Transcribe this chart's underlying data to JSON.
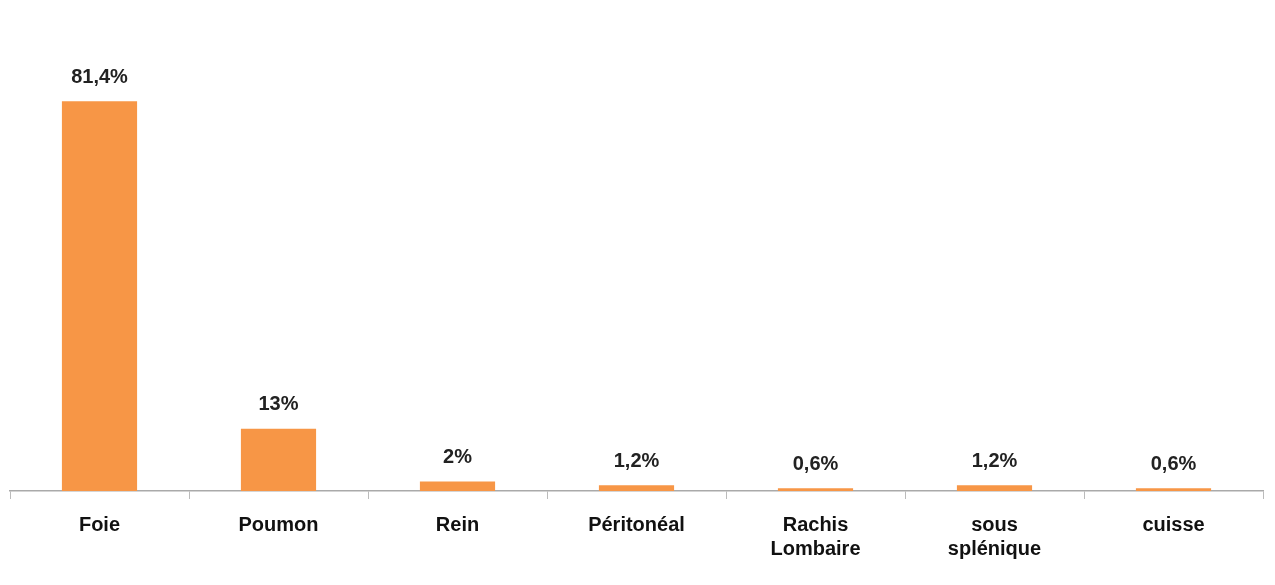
{
  "chart_data": {
    "type": "bar",
    "categories": [
      "Foie",
      "Poumon",
      "Rein",
      "Péritonéal",
      "Rachis Lombaire",
      "sous splénique",
      "cuisse"
    ],
    "values": [
      81.4,
      13,
      2,
      1.2,
      0.6,
      1.2,
      0.6
    ],
    "color": "#f79646",
    "value_labels": [
      "81,4%",
      "13%",
      "2%",
      "1,2%",
      "0,6%",
      "1,2%",
      "0,6%"
    ],
    "grid": false,
    "legend": false
  }
}
